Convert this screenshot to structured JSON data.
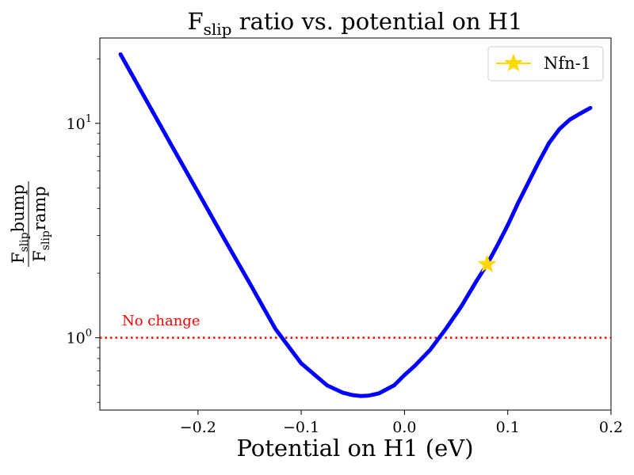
{
  "chart_data": {
    "type": "line",
    "title": {
      "main": "F",
      "sub": "slip",
      "rest": " ratio vs. potential on H1"
    },
    "xlabel": "Potential on H1 (eV)",
    "ylabel": {
      "numerator_main": "F",
      "numerator_sub": "slip",
      "numerator_rest": "bump",
      "denominator_main": "F",
      "denominator_sub": "slip",
      "denominator_rest": "ramp"
    },
    "xlim": [
      -0.295,
      0.2
    ],
    "ylim": [
      0.46,
      25
    ],
    "yscale": "log",
    "grid": false,
    "x_ticks": [
      {
        "value": -0.2,
        "label": "−0.2"
      },
      {
        "value": -0.1,
        "label": "−0.1"
      },
      {
        "value": 0.0,
        "label": "0.0"
      },
      {
        "value": 0.1,
        "label": "0.1"
      },
      {
        "value": 0.2,
        "label": "0.2"
      }
    ],
    "y_ticks": [
      {
        "value": 1,
        "base": "10",
        "exp": "0"
      },
      {
        "value": 10,
        "base": "10",
        "exp": "1"
      }
    ],
    "series": [
      {
        "color": "#0000ff",
        "x": [
          -0.275,
          -0.25,
          -0.225,
          -0.2,
          -0.175,
          -0.15,
          -0.125,
          -0.1,
          -0.075,
          -0.06,
          -0.05,
          -0.042,
          -0.035,
          -0.025,
          -0.01,
          0.0,
          0.01,
          0.025,
          0.04,
          0.055,
          0.07,
          0.08,
          0.09,
          0.1,
          0.11,
          0.12,
          0.13,
          0.14,
          0.15,
          0.16,
          0.17,
          0.18
        ],
        "y": [
          21.0,
          12.8,
          7.8,
          4.78,
          2.92,
          1.8,
          1.1,
          0.76,
          0.6,
          0.555,
          0.54,
          0.535,
          0.537,
          0.55,
          0.6,
          0.67,
          0.74,
          0.88,
          1.1,
          1.4,
          1.85,
          2.2,
          2.7,
          3.35,
          4.25,
          5.3,
          6.6,
          8.1,
          9.4,
          10.4,
          11.1,
          11.8
        ]
      }
    ],
    "marker": {
      "name": "Nfn-1",
      "x": 0.08,
      "y": 2.2,
      "color": "#ffd700",
      "symbol": "star"
    },
    "reference_line": {
      "y": 1,
      "color": "#ff0000",
      "style": "dotted",
      "label": "No change"
    },
    "legend": {
      "placement": "top-right",
      "entries": [
        "Nfn-1"
      ]
    }
  }
}
